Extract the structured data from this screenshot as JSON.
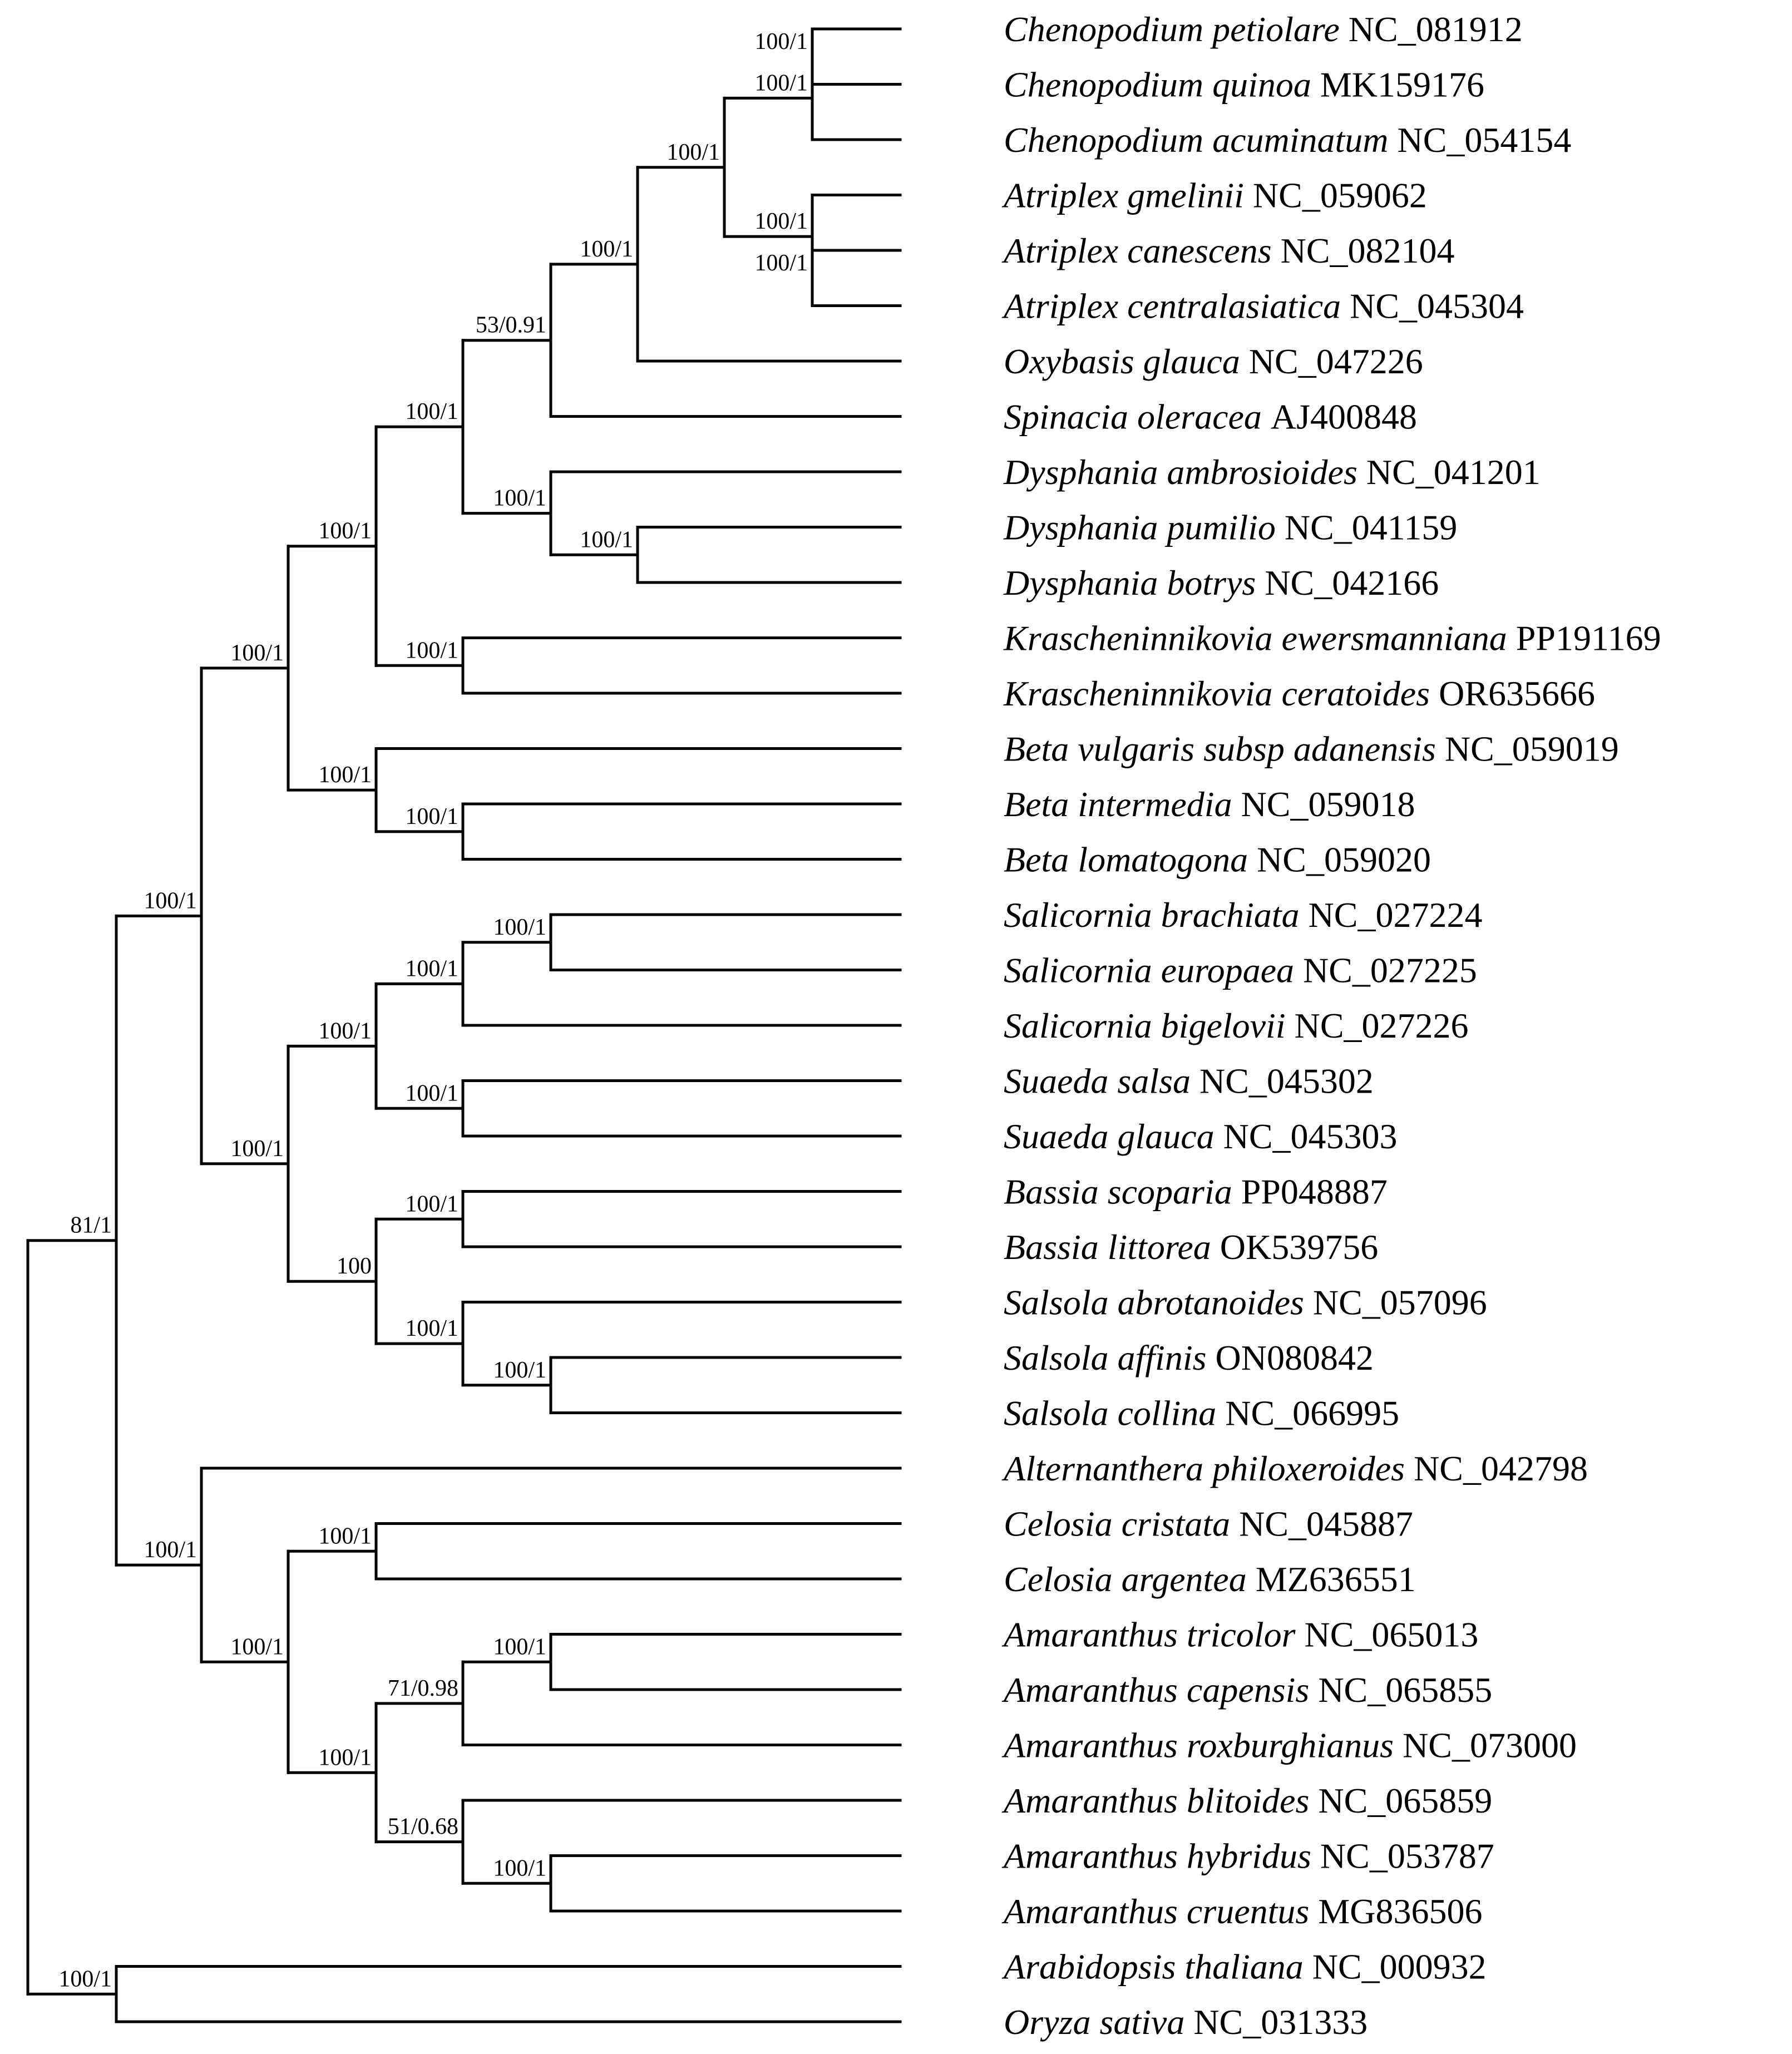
{
  "figure": {
    "type": "phylogenetic-tree",
    "colors": {
      "branch": "#000000",
      "text": "#000000",
      "background": "#ffffff"
    }
  },
  "tree": {
    "support": "81/1",
    "children": [
      {
        "support": "100/1",
        "children": [
          {
            "support": "100/1",
            "children": [
              {
                "support": "100/1",
                "children": [
                  {
                    "support": "53/0.91",
                    "children": [
                      {
                        "support": "100/1",
                        "children": [
                          {
                            "support": "100/1",
                            "children": [
                              {
                                "support": "100/1",
                                "children": [
                                  {
                                    "support": "100/1",
                                    "children": [
                                      {
                                        "species": "Chenopodium petiolare",
                                        "accession": "NC_081912"
                                      },
                                      {
                                        "species": "Chenopodium quinoa",
                                        "accession": "MK159176"
                                      }
                                    ]
                                  },
                                  {
                                    "species": "Chenopodium acuminatum",
                                    "accession": "NC_054154"
                                  }
                                ]
                              },
                              {
                                "support": "100/1",
                                "children": [
                                  {
                                    "species": "Atriplex gmelinii",
                                    "accession": "NC_059062"
                                  },
                                  {
                                    "support": "100/1",
                                    "children": [
                                      {
                                        "species": "Atriplex canescens",
                                        "accession": "NC_082104"
                                      },
                                      {
                                        "species": "Atriplex centralasiatica",
                                        "accession": "NC_045304"
                                      }
                                    ]
                                  }
                                ]
                              }
                            ]
                          },
                          {
                            "species": "Oxybasis glauca",
                            "accession": "NC_047226"
                          }
                        ]
                      },
                      {
                        "species": "Spinacia oleracea",
                        "accession": "AJ400848"
                      }
                    ]
                  },
                  {
                    "support": "100/1",
                    "children": [
                      {
                        "species": "Dysphania ambrosioides",
                        "accession": "NC_041201"
                      },
                      {
                        "support": "100/1",
                        "children": [
                          {
                            "species": "Dysphania pumilio",
                            "accession": "NC_041159"
                          },
                          {
                            "species": "Dysphania botrys",
                            "accession": "NC_042166"
                          }
                        ]
                      }
                    ]
                  }
                ]
              },
              {
                "support": "100/1",
                "children": [
                  {
                    "species": "Krascheninnikovia ewersmanniana",
                    "accession": "PP191169"
                  },
                  {
                    "species": "Krascheninnikovia ceratoides",
                    "accession": "OR635666"
                  }
                ]
              }
            ]
          },
          {
            "support": "100/1",
            "children": [
              {
                "species": "Beta vulgaris subsp adanensis",
                "accession": "NC_059019"
              },
              {
                "support": "100/1",
                "children": [
                  {
                    "species": "Beta intermedia",
                    "accession": "NC_059018"
                  },
                  {
                    "species": "Beta lomatogona",
                    "accession": "NC_059020"
                  }
                ]
              }
            ]
          }
        ]
      },
      {
        "support": "100/1",
        "children": [
          {
            "support": "100/1",
            "children": [
              {
                "support": "100/1",
                "children": [
                  {
                    "support": "100/1",
                    "children": [
                      {
                        "species": "Salicornia brachiata",
                        "accession": "NC_027224"
                      },
                      {
                        "species": "Salicornia europaea",
                        "accession": "NC_027225"
                      }
                    ]
                  },
                  {
                    "species": "Salicornia bigelovii",
                    "accession": "NC_027226"
                  }
                ]
              },
              {
                "support": "100/1",
                "children": [
                  {
                    "species": "Suaeda salsa",
                    "accession": "NC_045302"
                  },
                  {
                    "species": "Suaeda glauca",
                    "accession": "NC_045303"
                  }
                ]
              }
            ]
          },
          {
            "support": "100",
            "children": [
              {
                "support": "100/1",
                "children": [
                  {
                    "species": "Bassia scoparia",
                    "accession": "PP048887"
                  },
                  {
                    "species": "Bassia littorea",
                    "accession": "OK539756"
                  }
                ]
              },
              {
                "support": "100/1",
                "children": [
                  {
                    "species": "Salsola abrotanoides",
                    "accession": "NC_057096"
                  },
                  {
                    "support": "100/1",
                    "children": [
                      {
                        "species": "Salsola affinis",
                        "accession": "ON080842"
                      },
                      {
                        "species": "Salsola collina",
                        "accession": "NC_066995"
                      }
                    ]
                  }
                ]
              }
            ]
          }
        ]
      }
    ],
    "outer": [
      {
        "support": "100/1",
        "children": [
          {
            "species": "Alternanthera philoxeroides",
            "accession": "NC_042798"
          },
          {
            "support": "100/1",
            "children": [
              {
                "support": "100/1",
                "children": [
                  {
                    "species": "Celosia cristata",
                    "accession": "NC_045887"
                  },
                  {
                    "species": "Celosia argentea",
                    "accession": "MZ636551"
                  }
                ]
              },
              {
                "support": "100/1",
                "children": [
                  {
                    "support": "71/0.98",
                    "children": [
                      {
                        "support": "100/1",
                        "children": [
                          {
                            "species": "Amaranthus tricolor",
                            "accession": "NC_065013"
                          },
                          {
                            "species": "Amaranthus capensis",
                            "accession": "NC_065855"
                          }
                        ]
                      },
                      {
                        "species": "Amaranthus roxburghianus",
                        "accession": "NC_073000"
                      }
                    ]
                  },
                  {
                    "support": "51/0.68",
                    "children": [
                      {
                        "species": "Amaranthus blitoides",
                        "accession": "NC_065859"
                      },
                      {
                        "support": "100/1",
                        "children": [
                          {
                            "species": "Amaranthus hybridus",
                            "accession": "NC_053787"
                          },
                          {
                            "species": "Amaranthus cruentus",
                            "accession": "MG836506"
                          }
                        ]
                      }
                    ]
                  }
                ]
              }
            ]
          }
        ]
      }
    ],
    "outgroup": {
      "support": "100/1",
      "children": [
        {
          "species": "Arabidopsis thaliana",
          "accession": "NC_000932"
        },
        {
          "species": "Oryza sativa",
          "accession": "NC_031333"
        }
      ]
    }
  }
}
